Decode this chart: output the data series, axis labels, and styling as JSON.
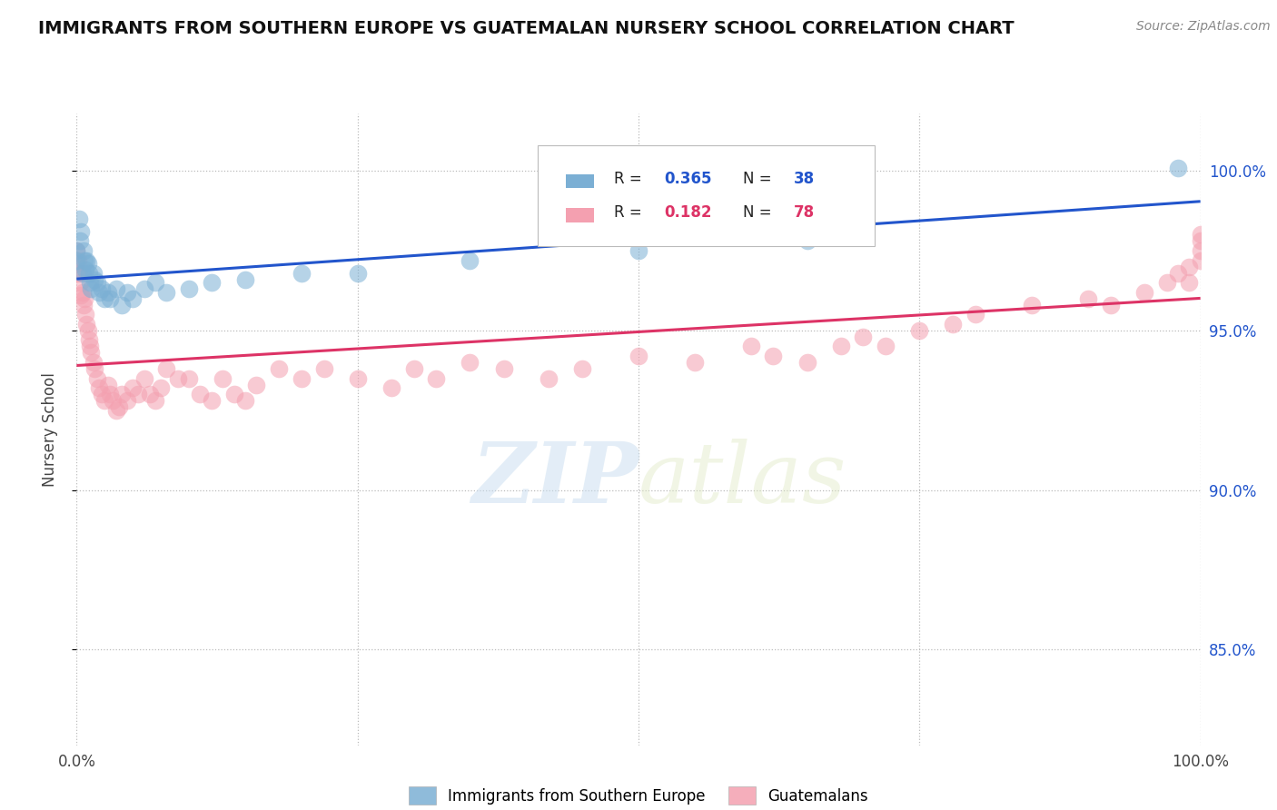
{
  "title": "IMMIGRANTS FROM SOUTHERN EUROPE VS GUATEMALAN NURSERY SCHOOL CORRELATION CHART",
  "source_text": "Source: ZipAtlas.com",
  "ylabel": "Nursery School",
  "xmin": 0.0,
  "xmax": 1.0,
  "ymin": 0.82,
  "ymax": 1.018,
  "ytick_labels": [
    "85.0%",
    "90.0%",
    "95.0%",
    "100.0%"
  ],
  "ytick_values": [
    0.85,
    0.9,
    0.95,
    1.0
  ],
  "legend_blue_label": "Immigrants from Southern Europe",
  "legend_pink_label": "Guatemalans",
  "blue_R": 0.365,
  "blue_N": 38,
  "pink_R": 0.182,
  "pink_N": 78,
  "blue_color": "#7bafd4",
  "pink_color": "#f4a0b0",
  "blue_line_color": "#2255cc",
  "pink_line_color": "#dd3366",
  "blue_scatter_x": [
    0.0,
    0.0,
    0.002,
    0.003,
    0.004,
    0.005,
    0.006,
    0.007,
    0.008,
    0.009,
    0.01,
    0.011,
    0.012,
    0.013,
    0.015,
    0.016,
    0.018,
    0.02,
    0.022,
    0.025,
    0.028,
    0.03,
    0.035,
    0.04,
    0.045,
    0.05,
    0.06,
    0.07,
    0.08,
    0.1,
    0.12,
    0.15,
    0.2,
    0.25,
    0.35,
    0.5,
    0.65,
    0.98
  ],
  "blue_scatter_y": [
    0.975,
    0.972,
    0.985,
    0.978,
    0.981,
    0.968,
    0.975,
    0.972,
    0.969,
    0.972,
    0.971,
    0.968,
    0.965,
    0.963,
    0.968,
    0.966,
    0.965,
    0.962,
    0.963,
    0.96,
    0.962,
    0.96,
    0.963,
    0.958,
    0.962,
    0.96,
    0.963,
    0.965,
    0.962,
    0.963,
    0.965,
    0.966,
    0.968,
    0.968,
    0.972,
    0.975,
    0.978,
    1.001
  ],
  "pink_scatter_x": [
    0.0,
    0.0,
    0.0,
    0.001,
    0.002,
    0.003,
    0.004,
    0.005,
    0.006,
    0.007,
    0.008,
    0.009,
    0.01,
    0.011,
    0.012,
    0.013,
    0.015,
    0.016,
    0.018,
    0.02,
    0.022,
    0.025,
    0.028,
    0.03,
    0.032,
    0.035,
    0.038,
    0.04,
    0.045,
    0.05,
    0.055,
    0.06,
    0.065,
    0.07,
    0.075,
    0.08,
    0.09,
    0.1,
    0.11,
    0.12,
    0.13,
    0.14,
    0.15,
    0.16,
    0.18,
    0.2,
    0.22,
    0.25,
    0.28,
    0.3,
    0.32,
    0.35,
    0.38,
    0.42,
    0.45,
    0.5,
    0.55,
    0.6,
    0.62,
    0.65,
    0.68,
    0.7,
    0.72,
    0.75,
    0.78,
    0.8,
    0.85,
    0.9,
    0.92,
    0.95,
    0.97,
    0.98,
    0.99,
    0.99,
    1.0,
    1.0,
    1.0,
    1.0
  ],
  "pink_scatter_y": [
    0.975,
    0.971,
    0.968,
    0.972,
    0.968,
    0.965,
    0.961,
    0.962,
    0.958,
    0.96,
    0.955,
    0.952,
    0.95,
    0.947,
    0.945,
    0.943,
    0.94,
    0.938,
    0.935,
    0.932,
    0.93,
    0.928,
    0.933,
    0.93,
    0.928,
    0.925,
    0.926,
    0.93,
    0.928,
    0.932,
    0.93,
    0.935,
    0.93,
    0.928,
    0.932,
    0.938,
    0.935,
    0.935,
    0.93,
    0.928,
    0.935,
    0.93,
    0.928,
    0.933,
    0.938,
    0.935,
    0.938,
    0.935,
    0.932,
    0.938,
    0.935,
    0.94,
    0.938,
    0.935,
    0.938,
    0.942,
    0.94,
    0.945,
    0.942,
    0.94,
    0.945,
    0.948,
    0.945,
    0.95,
    0.952,
    0.955,
    0.958,
    0.96,
    0.958,
    0.962,
    0.965,
    0.968,
    0.97,
    0.965,
    0.972,
    0.975,
    0.978,
    0.98
  ]
}
